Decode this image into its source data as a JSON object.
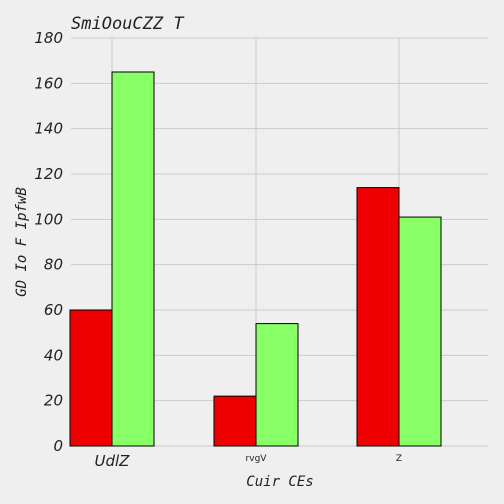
{
  "chart_data": {
    "type": "bar",
    "title": "SmiOouCZZ T",
    "xlabel": "Cuir CEs",
    "ylabel": "GD Io F IpfwB",
    "categories": [
      "UdlZ",
      "rvgV",
      "Z"
    ],
    "series": [
      {
        "values": [
          60,
          22,
          114
        ],
        "color": "#ee0000"
      },
      {
        "values": [
          165,
          54,
          101
        ],
        "color": "#88ff66"
      }
    ],
    "ylim": [
      0,
      180
    ],
    "yticks": [
      0,
      20,
      40,
      60,
      80,
      100,
      120,
      140,
      160,
      180
    ],
    "grid": true
  }
}
